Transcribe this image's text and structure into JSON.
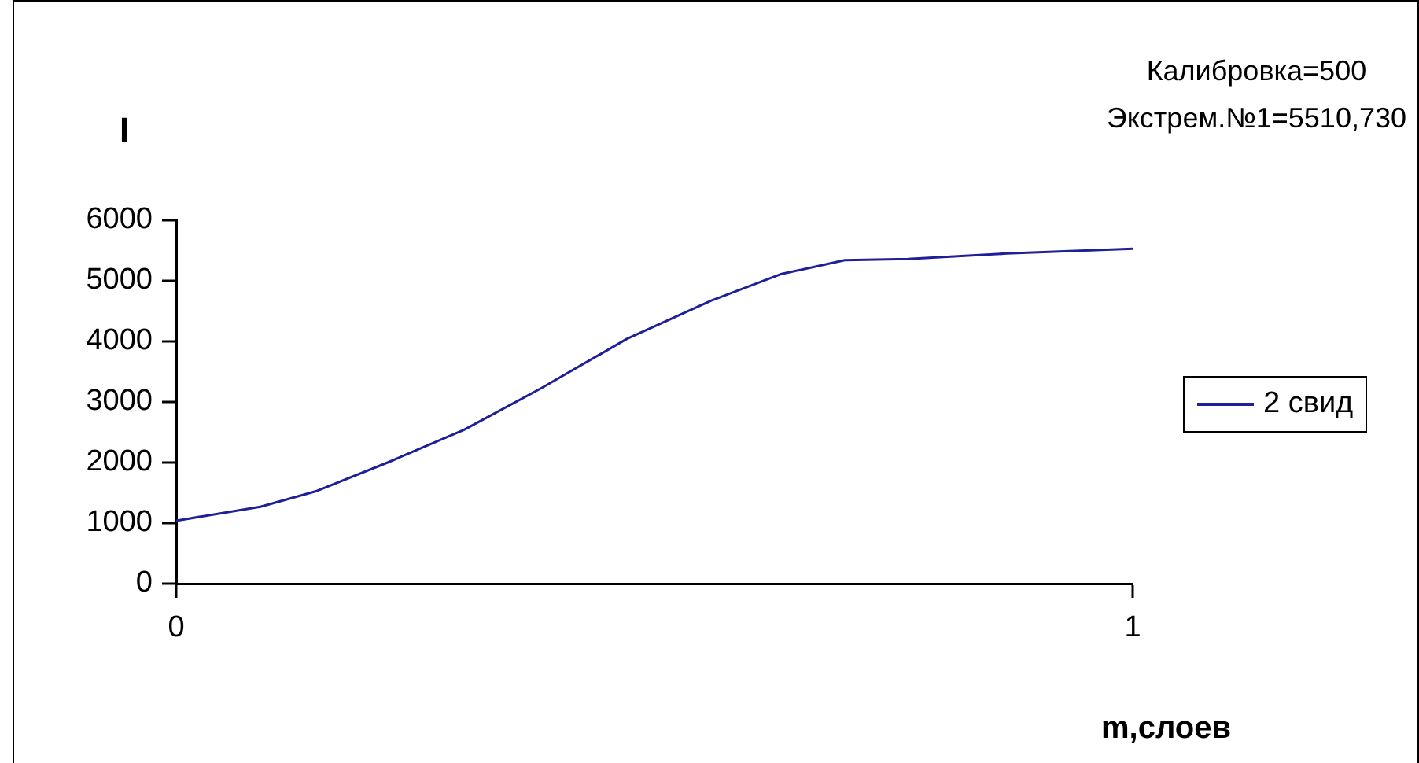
{
  "chart_data": {
    "type": "line",
    "ylabel": "I",
    "xlabel": "m,слоев",
    "annotations": [
      "Калибровка=500",
      "Экстрем.№1=5510,730"
    ],
    "x": [
      0,
      0.088,
      0.147,
      0.221,
      0.301,
      0.382,
      0.471,
      0.559,
      0.632,
      0.699,
      0.765,
      0.868,
      1
    ],
    "series": [
      {
        "name": "2 свид",
        "color": "#1f1f99",
        "values": [
          1040,
          1270,
          1530,
          2000,
          2540,
          3230,
          4040,
          4670,
          5110,
          5340,
          5360,
          5450,
          5530
        ]
      }
    ],
    "xlim": [
      0,
      1
    ],
    "xticks": [
      0,
      1
    ],
    "ylim": [
      0,
      6000
    ],
    "yticks": [
      0,
      1000,
      2000,
      3000,
      4000,
      5000,
      6000
    ],
    "grid": false,
    "legend": "right",
    "marker": "none",
    "line_style": "solid"
  }
}
